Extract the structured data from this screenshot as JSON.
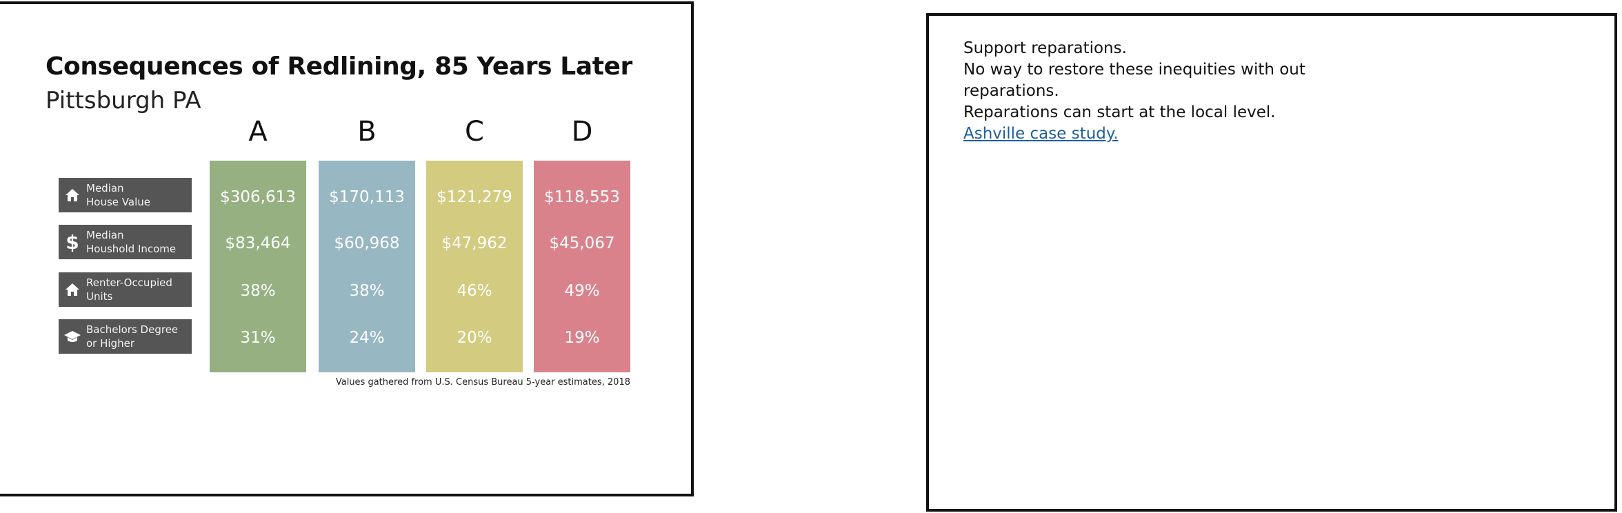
{
  "slide": {
    "title": "Consequences of Redlining, 85 Years Later",
    "subtitle": "Pittsburgh PA",
    "columns": [
      {
        "grade": "A",
        "color": "#96b081",
        "values": [
          "$306,613",
          "$83,464",
          "38%",
          "31%"
        ]
      },
      {
        "grade": "B",
        "color": "#97b7c3",
        "values": [
          "$170,113",
          "$60,968",
          "38%",
          "24%"
        ]
      },
      {
        "grade": "C",
        "color": "#d3cb80",
        "values": [
          "$121,279",
          "$47,962",
          "46%",
          "20%"
        ]
      },
      {
        "grade": "D",
        "color": "#da828b",
        "values": [
          "$118,553",
          "$45,067",
          "49%",
          "19%"
        ]
      }
    ],
    "rows": [
      {
        "label": "Median\nHouse Value",
        "icon": "house-icon"
      },
      {
        "label": "Median\nHoushold Income",
        "icon": "dollar-icon"
      },
      {
        "label": "Renter-Occupied\nUnits",
        "icon": "house-icon"
      },
      {
        "label": "Bachelors Degree\nor Higher",
        "icon": "graduation-cap-icon"
      }
    ],
    "source": "Values gathered from U.S. Census Bureau 5-year estimates, 2018"
  },
  "notes": {
    "lines": [
      "Support reparations.",
      "No way to restore these inequities with out",
      "reparations.",
      "Reparations can start at the local level."
    ],
    "link": "Ashville case study."
  }
}
